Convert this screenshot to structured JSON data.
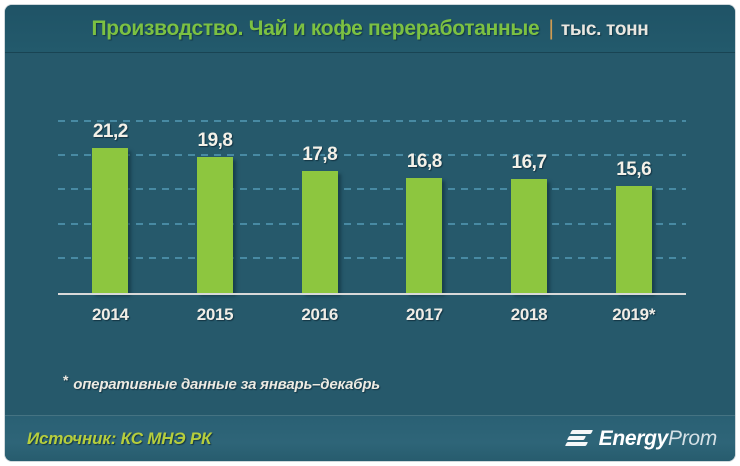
{
  "title": {
    "text": "Производство. Чай и кофе переработанные",
    "separator": "|",
    "unit": "тыс. тонн"
  },
  "chart_data": {
    "type": "bar",
    "title": "Производство. Чай и кофе переработанные",
    "unit_label": "тыс. тонн",
    "categories": [
      "2014",
      "2015",
      "2016",
      "2017",
      "2018",
      "2019*"
    ],
    "values": [
      21.2,
      19.8,
      17.8,
      16.8,
      16.7,
      15.6
    ],
    "value_labels": [
      "21,2",
      "19,8",
      "17,8",
      "16,8",
      "16,7",
      "15,6"
    ],
    "ylim": [
      0,
      25
    ],
    "gridline_step": 5,
    "grid": true,
    "legend": false,
    "bar_color": "#8dc63f",
    "gridline_color": "#4e93ad",
    "axis_line_color": "#d9d9d9"
  },
  "footnote": {
    "marker": "*",
    "text": "оперативные данные за январь–декабрь"
  },
  "footer": {
    "source": "Источник: КС МНЭ РК",
    "logo_bold": "Energy",
    "logo_light": "Prom"
  },
  "colors": {
    "background": "#26596b",
    "header_background": "#21566a",
    "footer_background": "#2d6376",
    "title_green": "#7cc142",
    "separator_orange": "#cf9b52",
    "bar_green": "#8dc63f",
    "gridline_blue": "#4e93ad",
    "source_green": "#b6ce3d",
    "label_white": "#f4f1e8"
  }
}
